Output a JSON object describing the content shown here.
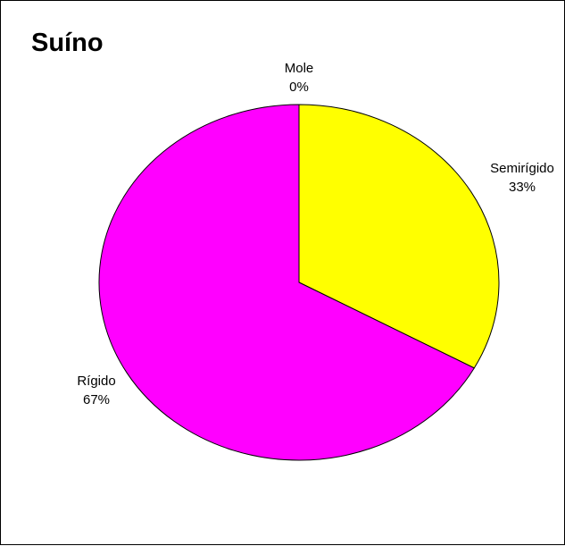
{
  "chart_data": {
    "type": "pie",
    "title": "Suíno",
    "categories": [
      "Mole",
      "Semirígido",
      "Rígido"
    ],
    "values": [
      0,
      33,
      67
    ],
    "labels": [
      "0%",
      "33%",
      "67%"
    ],
    "colors": [
      "#FFFFFF",
      "#FFFF00",
      "#FF00FF"
    ],
    "start_angle": "12 o'clock",
    "direction": "clockwise",
    "legend": "none"
  }
}
